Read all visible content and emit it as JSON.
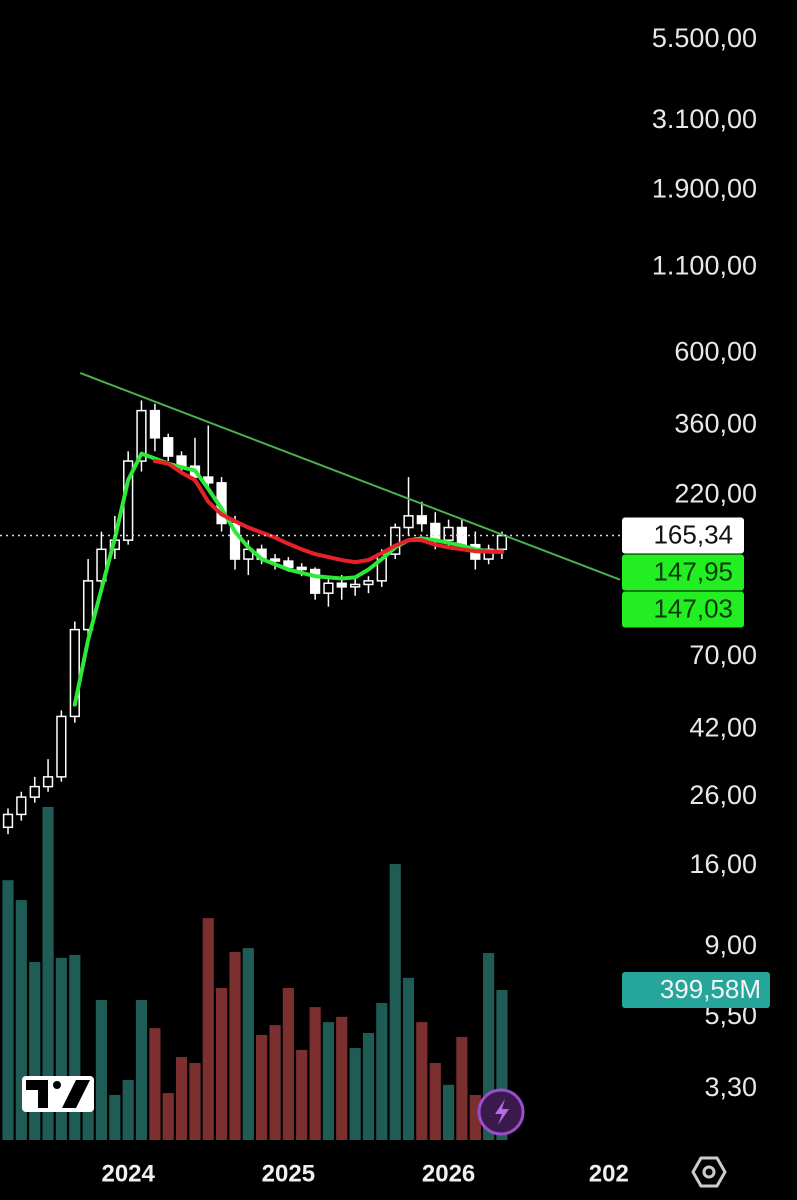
{
  "chart_data": {
    "type": "candlestick",
    "log_scale": true,
    "xlim": [
      2023.2,
      2027.07
    ],
    "xticks": [
      2024,
      2025,
      2026,
      {
        "value": 2027,
        "label": "202"
      }
    ],
    "ylim": [
      2.3,
      7300
    ],
    "yticks": [
      {
        "value": 5500,
        "label": "5.500,00"
      },
      {
        "value": 3100,
        "label": "3.100,00"
      },
      {
        "value": 1900,
        "label": "1.900,00"
      },
      {
        "value": 1100,
        "label": "1.100,00"
      },
      {
        "value": 600,
        "label": "600,00"
      },
      {
        "value": 360,
        "label": "360,00"
      },
      {
        "value": 220,
        "label": "220,00"
      },
      {
        "value": 70,
        "label": "70,00"
      },
      {
        "value": 42,
        "label": "42,00"
      },
      {
        "value": 26,
        "label": "26,00"
      },
      {
        "value": 16,
        "label": "16,00"
      },
      {
        "value": 9,
        "label": "9,00"
      },
      {
        "value": 5.5,
        "label": "5,50"
      },
      {
        "value": 3.3,
        "label": "3,30"
      }
    ],
    "x": [
      2023.25,
      2023.333,
      2023.417,
      2023.5,
      2023.583,
      2023.667,
      2023.75,
      2023.833,
      2023.917,
      2024.0,
      2024.083,
      2024.167,
      2024.25,
      2024.333,
      2024.417,
      2024.5,
      2024.583,
      2024.667,
      2024.75,
      2024.833,
      2024.917,
      2025.0,
      2025.083,
      2025.167,
      2025.25,
      2025.333,
      2025.417,
      2025.5,
      2025.583,
      2025.667,
      2025.75,
      2025.833,
      2025.917,
      2026.0,
      2026.083,
      2026.167,
      2026.25,
      2026.333
    ],
    "open": [
      21,
      23,
      26,
      28,
      30,
      46,
      85,
      120,
      150,
      160,
      280,
      400,
      330,
      290,
      270,
      250,
      240,
      180,
      140,
      150,
      140,
      138,
      132,
      130,
      110,
      118,
      115,
      117,
      120,
      145,
      175,
      190,
      180,
      160,
      175,
      155,
      140,
      150
    ],
    "high": [
      24,
      27,
      30,
      34,
      48,
      90,
      140,
      170,
      190,
      300,
      430,
      420,
      340,
      300,
      330,
      360,
      250,
      190,
      160,
      155,
      145,
      142,
      136,
      132,
      122,
      125,
      122,
      124,
      150,
      180,
      250,
      210,
      195,
      185,
      185,
      170,
      155,
      170
    ],
    "low": [
      20,
      22,
      25,
      27,
      29,
      44,
      80,
      110,
      140,
      155,
      260,
      300,
      280,
      260,
      240,
      230,
      170,
      130,
      125,
      135,
      130,
      128,
      124,
      105,
      100,
      105,
      108,
      110,
      115,
      140,
      165,
      170,
      150,
      150,
      150,
      130,
      135,
      140
    ],
    "close": [
      23,
      26,
      28,
      30,
      46,
      85,
      120,
      150,
      160,
      280,
      400,
      330,
      290,
      270,
      250,
      240,
      180,
      140,
      150,
      140,
      138,
      132,
      130,
      110,
      118,
      115,
      117,
      120,
      145,
      175,
      190,
      180,
      160,
      175,
      155,
      140,
      150,
      165.34
    ],
    "volume": [
      692,
      639,
      474,
      887,
      485,
      493,
      107,
      373,
      120,
      160,
      373,
      298,
      125,
      221,
      205,
      591,
      405,
      501,
      511,
      280,
      306,
      405,
      240,
      354,
      314,
      328,
      245,
      285,
      365,
      735,
      432,
      314,
      205,
      147,
      274,
      120,
      498,
      399.58
    ],
    "volume_ylim": [
      0,
      1060
    ],
    "up_color": "#ffffff",
    "down_color": "#ffffff",
    "volume_up_color": "#1e5c55",
    "volume_down_color": "#7b2f2f",
    "last_price_label": "165,34",
    "volume_label": "399,58M",
    "series": [
      {
        "color": "#2ee83a",
        "last_value_label": "147,95",
        "values": [
          null,
          null,
          null,
          null,
          null,
          50,
          79,
          113,
          162,
          245,
          295,
          285,
          275,
          268,
          262,
          230,
          200,
          170,
          152,
          140,
          135,
          130,
          127,
          124,
          123,
          122,
          123,
          130,
          140,
          152,
          160,
          162,
          160,
          157,
          154,
          150,
          148,
          147.95
        ]
      },
      {
        "color": "#e8202a",
        "last_value_label": "147,03",
        "values": [
          null,
          null,
          null,
          null,
          null,
          null,
          null,
          null,
          null,
          null,
          null,
          280,
          275,
          258,
          245,
          210,
          192,
          183,
          175,
          169,
          163,
          156,
          150,
          145,
          142,
          139,
          137,
          139,
          146,
          154,
          160,
          160,
          155,
          152,
          150,
          148,
          147.5,
          147.03
        ]
      }
    ],
    "trendline": {
      "color": "#4caf50",
      "x": [
        2023.7,
        2027.07
      ],
      "values": [
        522,
        121
      ]
    }
  }
}
